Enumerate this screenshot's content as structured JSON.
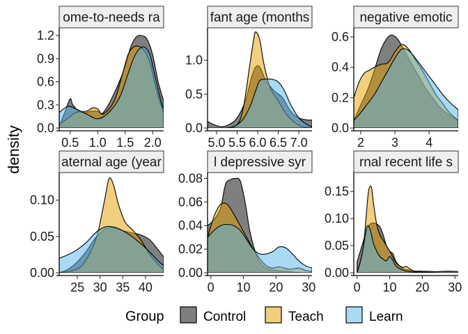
{
  "chart_data": {
    "type": "area",
    "ylabel": "density",
    "legend": {
      "title": "Group",
      "placement": "bottom",
      "entries": [
        {
          "name": "Control",
          "color": "#000000",
          "opacity": 0.5
        },
        {
          "name": "Teach",
          "color": "#E69F00",
          "opacity": 0.5
        },
        {
          "name": "Learn",
          "color": "#56B4E9",
          "opacity": 0.5
        }
      ]
    },
    "panels": [
      {
        "strip": "ome-to-needs ra",
        "xlim": [
          0.3,
          2.2
        ],
        "ylim": [
          0,
          1.3
        ],
        "xticks": [
          0.5,
          1.0,
          1.5,
          2.0
        ],
        "xtick_labels": [
          "0.5",
          "1.0",
          "1.5",
          "2.0"
        ],
        "yticks": [
          0,
          0.3,
          0.6,
          0.9,
          1.2
        ],
        "ytick_labels": [
          "0.0",
          "0.3",
          "0.6",
          "0.9",
          "1.2"
        ],
        "series": [
          {
            "name": "Control",
            "x": [
              0.3,
              0.4,
              0.5,
              0.55,
              0.7,
              0.9,
              1.0,
              1.1,
              1.3,
              1.5,
              1.6,
              1.7,
              1.8,
              1.9,
              2.0,
              2.1,
              2.2
            ],
            "y": [
              0.02,
              0.2,
              0.38,
              0.3,
              0.2,
              0.22,
              0.22,
              0.2,
              0.45,
              0.8,
              1.05,
              1.18,
              1.2,
              1.15,
              0.95,
              0.6,
              0.35
            ]
          },
          {
            "name": "Teach",
            "x": [
              0.3,
              0.45,
              0.6,
              0.8,
              0.9,
              1.0,
              1.1,
              1.3,
              1.45,
              1.55,
              1.65,
              1.75,
              1.85,
              1.95,
              2.05,
              2.15,
              2.2
            ],
            "y": [
              0.05,
              0.12,
              0.2,
              0.22,
              0.26,
              0.25,
              0.18,
              0.35,
              0.7,
              0.95,
              1.05,
              1.06,
              1.0,
              0.85,
              0.55,
              0.3,
              0.2
            ]
          },
          {
            "name": "Learn",
            "x": [
              0.3,
              0.45,
              0.6,
              0.8,
              1.0,
              1.2,
              1.4,
              1.55,
              1.65,
              1.75,
              1.85,
              1.95,
              2.05,
              2.15,
              2.2
            ],
            "y": [
              0.2,
              0.28,
              0.25,
              0.18,
              0.12,
              0.2,
              0.4,
              0.7,
              0.9,
              1.02,
              1.05,
              0.95,
              0.65,
              0.35,
              0.25
            ]
          }
        ]
      },
      {
        "strip": "fant age (months",
        "xlim": [
          4.78,
          7.32
        ],
        "ylim": [
          0,
          1.48
        ],
        "xticks": [
          5.0,
          5.5,
          6.0,
          6.5,
          7.0
        ],
        "xtick_labels": [
          "5.0",
          "5.5",
          "6.0",
          "6.5",
          "7.0"
        ],
        "yticks": [
          0,
          0.5,
          1.0
        ],
        "ytick_labels": [
          "0.0",
          "0.5",
          "1.0"
        ],
        "series": [
          {
            "name": "Control",
            "x": [
              4.78,
              4.9,
              5.1,
              5.3,
              5.5,
              5.7,
              5.85,
              5.95,
              6.05,
              6.2,
              6.4,
              6.6,
              6.8,
              7.0,
              7.2,
              7.32
            ],
            "y": [
              0.1,
              0.06,
              0.02,
              0.05,
              0.15,
              0.4,
              0.75,
              0.9,
              0.9,
              0.7,
              0.55,
              0.45,
              0.25,
              0.15,
              0.12,
              0.12
            ]
          },
          {
            "name": "Teach",
            "x": [
              4.78,
              5.2,
              5.5,
              5.65,
              5.8,
              5.9,
              5.95,
              6.05,
              6.15,
              6.3,
              6.5,
              6.7,
              6.9,
              7.1,
              7.32
            ],
            "y": [
              0.0,
              0.0,
              0.05,
              0.3,
              0.9,
              1.3,
              1.42,
              1.3,
              0.95,
              0.6,
              0.4,
              0.2,
              0.08,
              0.02,
              0.0
            ]
          },
          {
            "name": "Learn",
            "x": [
              4.78,
              5.3,
              5.6,
              5.8,
              5.95,
              6.05,
              6.2,
              6.35,
              6.5,
              6.65,
              6.8,
              7.0,
              7.2,
              7.32
            ],
            "y": [
              0.0,
              0.0,
              0.1,
              0.3,
              0.55,
              0.7,
              0.72,
              0.72,
              0.68,
              0.55,
              0.35,
              0.15,
              0.05,
              0.02
            ]
          }
        ]
      },
      {
        "strip": "negative emotic",
        "xlim": [
          1.8,
          4.85
        ],
        "ylim": [
          0,
          0.66
        ],
        "xticks": [
          2,
          3,
          4
        ],
        "xtick_labels": [
          "2",
          "3",
          "4"
        ],
        "yticks": [
          0,
          0.2,
          0.4,
          0.6
        ],
        "ytick_labels": [
          "0.0",
          "0.2",
          "0.4",
          "0.6"
        ],
        "series": [
          {
            "name": "Control",
            "x": [
              1.8,
              2.0,
              2.2,
              2.4,
              2.6,
              2.8,
              2.95,
              3.1,
              3.3,
              3.5,
              3.7,
              3.9,
              4.1,
              4.3,
              4.5,
              4.7,
              4.85
            ],
            "y": [
              0.05,
              0.15,
              0.25,
              0.38,
              0.52,
              0.6,
              0.61,
              0.58,
              0.5,
              0.42,
              0.34,
              0.26,
              0.2,
              0.14,
              0.1,
              0.07,
              0.05
            ]
          },
          {
            "name": "Teach",
            "x": [
              1.8,
              1.95,
              2.1,
              2.25,
              2.4,
              2.6,
              2.8,
              3.0,
              3.2,
              3.4,
              3.6,
              3.8,
              4.0,
              4.2,
              4.4,
              4.6,
              4.85
            ],
            "y": [
              0.2,
              0.3,
              0.36,
              0.38,
              0.4,
              0.42,
              0.43,
              0.5,
              0.55,
              0.52,
              0.45,
              0.38,
              0.3,
              0.22,
              0.16,
              0.1,
              0.05
            ]
          },
          {
            "name": "Learn",
            "x": [
              1.8,
              2.0,
              2.2,
              2.4,
              2.6,
              2.8,
              3.0,
              3.2,
              3.4,
              3.6,
              3.8,
              4.0,
              4.2,
              4.4,
              4.6,
              4.85
            ],
            "y": [
              0.05,
              0.1,
              0.16,
              0.22,
              0.3,
              0.38,
              0.46,
              0.52,
              0.51,
              0.46,
              0.4,
              0.34,
              0.28,
              0.22,
              0.17,
              0.12
            ]
          }
        ]
      },
      {
        "strip": "aternal age (year",
        "xlim": [
          21,
          44
        ],
        "ylim": [
          0,
          0.138
        ],
        "xticks": [
          25,
          30,
          35,
          40
        ],
        "xtick_labels": [
          "25",
          "30",
          "35",
          "40"
        ],
        "yticks": [
          0,
          0.05,
          0.1
        ],
        "ytick_labels": [
          "0.00",
          "0.05",
          "0.10"
        ],
        "series": [
          {
            "name": "Control",
            "x": [
              21,
              23,
              25,
              27,
              29,
              31,
              33,
              35,
              37,
              39,
              41,
              43,
              44
            ],
            "y": [
              0.0,
              0.005,
              0.015,
              0.03,
              0.048,
              0.06,
              0.062,
              0.058,
              0.055,
              0.052,
              0.045,
              0.03,
              0.022
            ]
          },
          {
            "name": "Teach",
            "x": [
              21,
              24,
              26,
              28,
              29.5,
              31,
              32,
              33,
              34,
              35.5,
              37,
              39,
              41,
              43,
              44
            ],
            "y": [
              0.0,
              0.003,
              0.01,
              0.03,
              0.055,
              0.1,
              0.13,
              0.12,
              0.095,
              0.07,
              0.06,
              0.045,
              0.025,
              0.01,
              0.005
            ]
          },
          {
            "name": "Learn",
            "x": [
              21,
              23,
              25,
              27,
              29,
              31,
              33,
              35,
              37,
              39,
              41,
              43,
              44
            ],
            "y": [
              0.02,
              0.025,
              0.032,
              0.042,
              0.055,
              0.063,
              0.063,
              0.058,
              0.05,
              0.04,
              0.028,
              0.015,
              0.01
            ]
          }
        ]
      },
      {
        "strip": "l depressive syr",
        "xlim": [
          -1,
          31
        ],
        "ylim": [
          0,
          0.085
        ],
        "xticks": [
          0,
          10,
          20,
          30
        ],
        "xtick_labels": [
          "0",
          "10",
          "20",
          "30"
        ],
        "yticks": [
          0,
          0.02,
          0.04,
          0.06,
          0.08
        ],
        "ytick_labels": [
          "0.00",
          "0.02",
          "0.04",
          "0.06",
          "0.08"
        ],
        "series": [
          {
            "name": "Control",
            "x": [
              -1,
              1,
              3,
              4.5,
              6,
              7.5,
              9,
              10.5,
              12,
              14,
              16,
              18,
              20,
              24,
              28,
              31
            ],
            "y": [
              0.04,
              0.045,
              0.055,
              0.075,
              0.079,
              0.08,
              0.078,
              0.06,
              0.035,
              0.015,
              0.006,
              0.003,
              0.002,
              0.001,
              0.0,
              0.0
            ]
          },
          {
            "name": "Teach",
            "x": [
              -1,
              1,
              3,
              5,
              7,
              9,
              11,
              13,
              15,
              17,
              19,
              21,
              24,
              27,
              29,
              31
            ],
            "y": [
              0.03,
              0.048,
              0.058,
              0.058,
              0.05,
              0.04,
              0.03,
              0.02,
              0.012,
              0.006,
              0.004,
              0.005,
              0.003,
              0.004,
              0.002,
              0.001
            ]
          },
          {
            "name": "Learn",
            "x": [
              -1,
              1,
              3,
              5,
              7,
              9,
              11,
              13,
              15,
              17,
              19,
              21,
              23,
              25,
              27,
              29,
              31
            ],
            "y": [
              0.03,
              0.036,
              0.04,
              0.041,
              0.04,
              0.036,
              0.028,
              0.02,
              0.016,
              0.016,
              0.018,
              0.022,
              0.021,
              0.016,
              0.01,
              0.006,
              0.004
            ]
          }
        ]
      },
      {
        "strip": "rnal recent life s",
        "xlim": [
          -1,
          31
        ],
        "ylim": [
          0,
          0.185
        ],
        "xticks": [
          0,
          10,
          20,
          30
        ],
        "xtick_labels": [
          "0",
          "10",
          "20",
          "30"
        ],
        "yticks": [
          0,
          0.05,
          0.1,
          0.15
        ],
        "ytick_labels": [
          "0.00",
          "0.05",
          "0.10",
          "0.15"
        ],
        "series": [
          {
            "name": "Control",
            "x": [
              0,
              1,
              2,
              3,
              4,
              5,
              6,
              7,
              8,
              9,
              10,
              11,
              12,
              14,
              16,
              18,
              20,
              24,
              28,
              31
            ],
            "y": [
              0.02,
              0.04,
              0.06,
              0.08,
              0.09,
              0.092,
              0.09,
              0.085,
              0.07,
              0.05,
              0.04,
              0.035,
              0.02,
              0.008,
              0.005,
              0.003,
              0.003,
              0.002,
              0.003,
              0.002
            ]
          },
          {
            "name": "Teach",
            "x": [
              0,
              1,
              2,
              3,
              3.5,
              4,
              4.5,
              5,
              6,
              7,
              8,
              9,
              10,
              12,
              14,
              15,
              16,
              18,
              22,
              26,
              31
            ],
            "y": [
              0.0,
              0.02,
              0.05,
              0.12,
              0.15,
              0.16,
              0.155,
              0.13,
              0.09,
              0.07,
              0.06,
              0.05,
              0.04,
              0.018,
              0.01,
              0.012,
              0.008,
              0.002,
              0.0,
              0.0,
              0.0
            ]
          },
          {
            "name": "Learn",
            "x": [
              0,
              1,
              2,
              3,
              4,
              5,
              6,
              7,
              8,
              9,
              10,
              11,
              12,
              14,
              16,
              20,
              25,
              31
            ],
            "y": [
              0.0,
              0.02,
              0.05,
              0.085,
              0.08,
              0.055,
              0.04,
              0.03,
              0.025,
              0.022,
              0.03,
              0.022,
              0.012,
              0.005,
              0.002,
              0.001,
              0.0,
              0.0
            ]
          }
        ]
      }
    ]
  }
}
